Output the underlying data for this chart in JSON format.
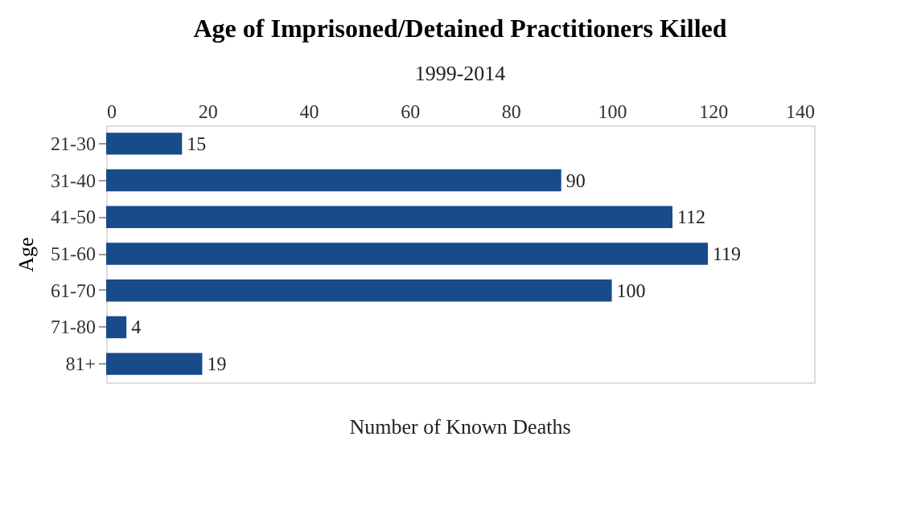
{
  "chart_data": {
    "type": "bar",
    "orientation": "horizontal",
    "title": "Age of Imprisoned/Detained Practitioners Killed",
    "subtitle": "1999-2014",
    "categories": [
      "21-30",
      "31-40",
      "41-50",
      "51-60",
      "61-70",
      "71-80",
      "81+"
    ],
    "values": [
      15,
      90,
      112,
      119,
      100,
      4,
      19
    ],
    "color": "#174b8a",
    "xlim": [
      0,
      140
    ],
    "xticks": [
      0,
      20,
      40,
      60,
      80,
      100,
      120,
      140
    ],
    "xlabel": "Number of Known Deaths",
    "ylabel": "Age",
    "data_labels": true,
    "grid": false
  }
}
